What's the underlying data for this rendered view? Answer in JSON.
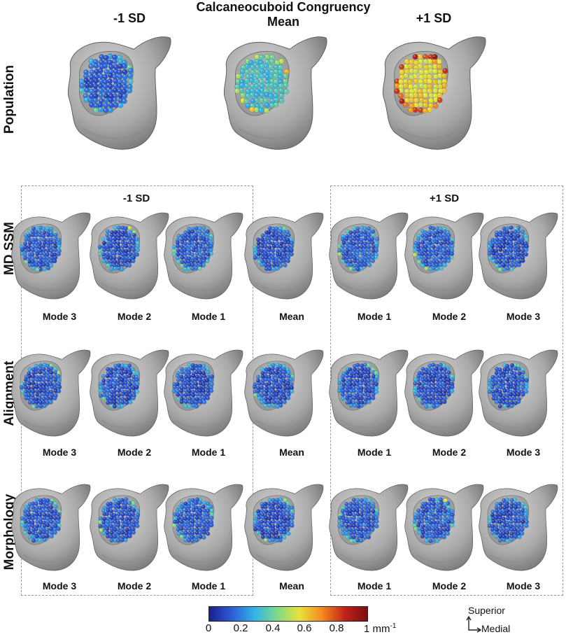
{
  "title": "Calcaneocuboid Congruency",
  "top_row": {
    "label": "Population",
    "columns": [
      "-1 SD",
      "Mean",
      "+1 SD"
    ],
    "levels": [
      0.14,
      0.32,
      0.58
    ]
  },
  "groups": {
    "minus_label": "-1 SD",
    "plus_label": "+1 SD"
  },
  "column_captions": [
    "Mode 3",
    "Mode 2",
    "Mode 1",
    "Mean",
    "Mode 1",
    "Mode 2",
    "Mode 3"
  ],
  "rows": [
    {
      "label": "MD SSM",
      "levels": [
        0.13,
        0.12,
        0.14,
        0.12,
        0.14,
        0.14,
        0.12
      ]
    },
    {
      "label": "Alignment",
      "levels": [
        0.12,
        0.12,
        0.12,
        0.12,
        0.12,
        0.12,
        0.12
      ]
    },
    {
      "label": "Morphology",
      "levels": [
        0.13,
        0.12,
        0.14,
        0.12,
        0.13,
        0.14,
        0.12
      ]
    }
  ],
  "colorbar": {
    "ticks": [
      "0",
      "0.2",
      "0.4",
      "0.6",
      "0.8"
    ],
    "max_label": "1 mm",
    "max_sup": "-1",
    "colors": [
      "#1a1f8c",
      "#2d5bd8",
      "#33b5e5",
      "#7fd98a",
      "#e8e23a",
      "#f58c1f",
      "#c0211a",
      "#7a0f0f"
    ]
  },
  "orientation": {
    "up": "Superior",
    "right": "Medial"
  }
}
